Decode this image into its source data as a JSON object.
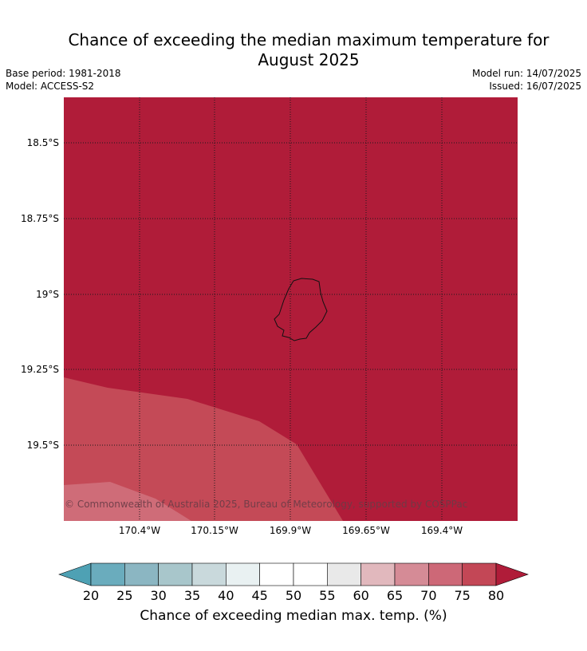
{
  "header": {
    "title_line1": "Chance of exceeding the median maximum temperature for",
    "title_line2": "August 2025",
    "base_period": "Base period: 1981-2018",
    "model": "Model: ACCESS-S2",
    "model_run": "Model run: 14/07/2025",
    "issued": "Issued: 16/07/2025"
  },
  "map": {
    "latitude_labels": [
      "18.5°S",
      "18.75°S",
      "19°S",
      "19.25°S",
      "19.5°S"
    ],
    "longitude_labels": [
      "170.4°W",
      "170.15°W",
      "169.9°W",
      "169.65°W",
      "169.4°W"
    ],
    "copyright": "© Commonwealth of Australia 2025, Bureau of Meteorology, supported by COSPPac",
    "fill_colors": {
      "dominant": "#b01c39",
      "band_75_80": "#c44a57",
      "band_70_75": "#cf6c78"
    }
  },
  "colorbar": {
    "label": "Chance of exceeding median max. temp. (%)",
    "ticks": [
      "20",
      "25",
      "30",
      "35",
      "40",
      "45",
      "50",
      "55",
      "60",
      "65",
      "70",
      "75",
      "80"
    ],
    "low_extend_color": "#4ea1b4",
    "high_extend_color": "#b01c39",
    "colors": [
      "#6aacbd",
      "#8bb6c2",
      "#a8c6cb",
      "#c9d9dc",
      "#e9f1f2",
      "#ffffff",
      "#ffffff",
      "#e9e9e9",
      "#e1b8bd",
      "#d58b96",
      "#cd6877",
      "#c34756"
    ]
  }
}
